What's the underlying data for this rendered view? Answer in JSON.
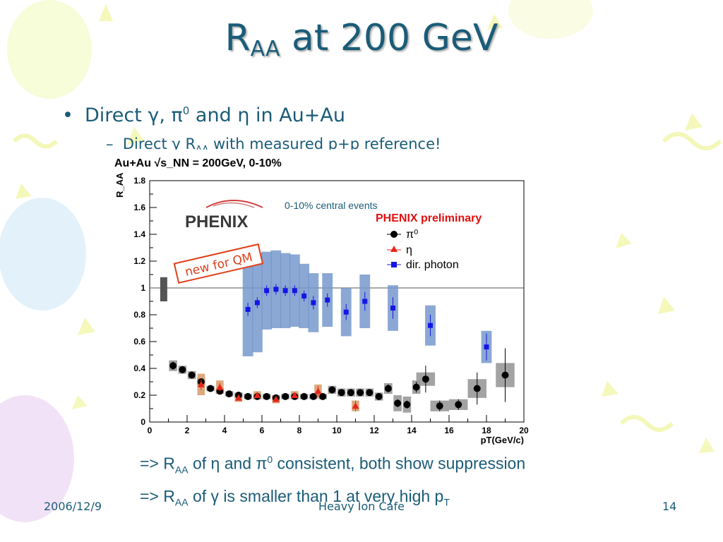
{
  "slide": {
    "title_main": "R",
    "title_sub": "AA",
    "title_rest": " at 200 GeV",
    "bullet1": {
      "prefix": "Direct ",
      "gamma": "γ",
      "sep": ", ",
      "pi": "π",
      "pi_sup": "0",
      "and": " and ",
      "eta": "η",
      "suffix": " in Au+Au"
    },
    "bullet2": {
      "dash": "–",
      "prefix": "Direct ",
      "gamma": "γ",
      "r": " R",
      "r_sub": "AA",
      "suffix": " with measured p+p reference!"
    },
    "note1": {
      "arrow": "=> R",
      "sub": "AA",
      "of": " of ",
      "eta": "η",
      "and": " and ",
      "pi": "π",
      "pi_sup": "0",
      "rest": " consistent, both show suppression"
    },
    "note2": {
      "arrow": "=> R",
      "sub": "AA",
      "of": " of ",
      "gamma": "γ",
      "rest": " is smaller than 1 at very high p",
      "sub2": "T"
    },
    "footer": {
      "date": "2006/12/9",
      "center": "Heavy Ion Cafe",
      "page": "14"
    }
  },
  "colors": {
    "title": "#1a5c78",
    "pi0": "#000000",
    "eta": "#e8251a",
    "photon": "#1515e6",
    "photon_sys": "#7799cc",
    "pi0_sys": "#999999",
    "eta_sys": "#d9a070",
    "phenix_red": "#e01010",
    "stamp": "#e0401a"
  },
  "chart_data": {
    "type": "scatter",
    "header": "Au+Au √s_NN = 200GeV, 0-10%",
    "ylabel": "R_AA",
    "xlabel": "pT(GeV/c)",
    "xlim": [
      0,
      20
    ],
    "ylim": [
      0,
      1.8
    ],
    "xticks": [
      "0",
      "2",
      "4",
      "6",
      "8",
      "10",
      "12",
      "14",
      "16",
      "18",
      "20"
    ],
    "yticks": [
      "0",
      "0.2",
      "0.4",
      "0.6",
      "0.8",
      "1",
      "1.2",
      "1.4",
      "1.6",
      "1.8"
    ],
    "annotations": {
      "centrality": "0-10% central events",
      "preliminary": "PHENIX preliminary",
      "stamp": "new for QM",
      "logo": "PHENIX"
    },
    "reference_line": 1,
    "norm_box": {
      "x": 0.75,
      "ylow": 0.9,
      "yhigh": 1.08
    },
    "legend": [
      "π⁰",
      "η",
      "dir. photon"
    ],
    "series": [
      {
        "name": "π⁰",
        "marker": "circle",
        "points": [
          {
            "x": 1.25,
            "y": 0.42,
            "err": 0.03,
            "sys": 0.04
          },
          {
            "x": 1.75,
            "y": 0.39,
            "err": 0.02,
            "sys": 0.03
          },
          {
            "x": 2.25,
            "y": 0.35,
            "err": 0.02,
            "sys": 0.03
          },
          {
            "x": 2.75,
            "y": 0.3,
            "err": 0.02,
            "sys": 0.03
          },
          {
            "x": 3.25,
            "y": 0.25,
            "err": 0.01,
            "sys": 0.02
          },
          {
            "x": 3.75,
            "y": 0.23,
            "err": 0.01,
            "sys": 0.02
          },
          {
            "x": 4.25,
            "y": 0.21,
            "err": 0.01,
            "sys": 0.02
          },
          {
            "x": 4.75,
            "y": 0.2,
            "err": 0.01,
            "sys": 0.02
          },
          {
            "x": 5.25,
            "y": 0.19,
            "err": 0.01,
            "sys": 0.02
          },
          {
            "x": 5.75,
            "y": 0.19,
            "err": 0.01,
            "sys": 0.02
          },
          {
            "x": 6.25,
            "y": 0.19,
            "err": 0.01,
            "sys": 0.02
          },
          {
            "x": 6.75,
            "y": 0.18,
            "err": 0.01,
            "sys": 0.02
          },
          {
            "x": 7.25,
            "y": 0.19,
            "err": 0.01,
            "sys": 0.02
          },
          {
            "x": 7.75,
            "y": 0.19,
            "err": 0.01,
            "sys": 0.02
          },
          {
            "x": 8.25,
            "y": 0.19,
            "err": 0.01,
            "sys": 0.02
          },
          {
            "x": 8.75,
            "y": 0.19,
            "err": 0.01,
            "sys": 0.02
          },
          {
            "x": 9.25,
            "y": 0.19,
            "err": 0.01,
            "sys": 0.02
          },
          {
            "x": 9.75,
            "y": 0.24,
            "err": 0.02,
            "sys": 0.03
          },
          {
            "x": 10.25,
            "y": 0.22,
            "err": 0.02,
            "sys": 0.03
          },
          {
            "x": 10.75,
            "y": 0.22,
            "err": 0.02,
            "sys": 0.03
          },
          {
            "x": 11.25,
            "y": 0.22,
            "err": 0.02,
            "sys": 0.03
          },
          {
            "x": 11.75,
            "y": 0.22,
            "err": 0.02,
            "sys": 0.03
          },
          {
            "x": 12.25,
            "y": 0.19,
            "err": 0.02,
            "sys": 0.03
          },
          {
            "x": 12.75,
            "y": 0.25,
            "err": 0.03,
            "sys": 0.04
          },
          {
            "x": 13.25,
            "y": 0.14,
            "err": 0.03,
            "sys": 0.06
          },
          {
            "x": 13.75,
            "y": 0.13,
            "err": 0.03,
            "sys": 0.06
          },
          {
            "x": 14.25,
            "y": 0.26,
            "err": 0.04,
            "sys": 0.05
          },
          {
            "x": 14.75,
            "y": 0.32,
            "err": 0.1,
            "sys": 0.05
          },
          {
            "x": 15.5,
            "y": 0.12,
            "err": 0.04,
            "sys": 0.04
          },
          {
            "x": 16.5,
            "y": 0.13,
            "err": 0.04,
            "sys": 0.04
          },
          {
            "x": 17.5,
            "y": 0.25,
            "err": 0.12,
            "sys": 0.07
          },
          {
            "x": 19.0,
            "y": 0.35,
            "err": 0.2,
            "sys": 0.09
          }
        ]
      },
      {
        "name": "η",
        "marker": "triangle",
        "points": [
          {
            "x": 2.75,
            "y": 0.28,
            "err": 0.04,
            "sys": 0.08
          },
          {
            "x": 3.75,
            "y": 0.26,
            "err": 0.03,
            "sys": 0.05
          },
          {
            "x": 4.75,
            "y": 0.18,
            "err": 0.02,
            "sys": 0.03
          },
          {
            "x": 5.75,
            "y": 0.2,
            "err": 0.02,
            "sys": 0.03
          },
          {
            "x": 6.75,
            "y": 0.17,
            "err": 0.02,
            "sys": 0.03
          },
          {
            "x": 7.75,
            "y": 0.2,
            "err": 0.02,
            "sys": 0.03
          },
          {
            "x": 9.0,
            "y": 0.23,
            "err": 0.04,
            "sys": 0.05
          },
          {
            "x": 11.0,
            "y": 0.12,
            "err": 0.04,
            "sys": 0.04
          }
        ]
      },
      {
        "name": "dir. photon",
        "marker": "square",
        "points": [
          {
            "x": 5.25,
            "y": 0.84,
            "err": 0.05,
            "sys": 0.35
          },
          {
            "x": 5.75,
            "y": 0.89,
            "err": 0.04,
            "sys": 0.37
          },
          {
            "x": 6.25,
            "y": 0.98,
            "err": 0.04,
            "sys": 0.29
          },
          {
            "x": 6.75,
            "y": 0.99,
            "err": 0.04,
            "sys": 0.29
          },
          {
            "x": 7.25,
            "y": 0.98,
            "err": 0.04,
            "sys": 0.28
          },
          {
            "x": 7.75,
            "y": 0.98,
            "err": 0.04,
            "sys": 0.27
          },
          {
            "x": 8.25,
            "y": 0.94,
            "err": 0.04,
            "sys": 0.24
          },
          {
            "x": 8.75,
            "y": 0.89,
            "err": 0.05,
            "sys": 0.22
          },
          {
            "x": 9.5,
            "y": 0.91,
            "err": 0.05,
            "sys": 0.2
          },
          {
            "x": 10.5,
            "y": 0.82,
            "err": 0.06,
            "sys": 0.18
          },
          {
            "x": 11.5,
            "y": 0.9,
            "err": 0.07,
            "sys": 0.2
          },
          {
            "x": 13.0,
            "y": 0.85,
            "err": 0.08,
            "sys": 0.17
          },
          {
            "x": 15.0,
            "y": 0.72,
            "err": 0.08,
            "sys": 0.15
          },
          {
            "x": 18.0,
            "y": 0.56,
            "err": 0.1,
            "sys": 0.12
          }
        ]
      }
    ]
  }
}
